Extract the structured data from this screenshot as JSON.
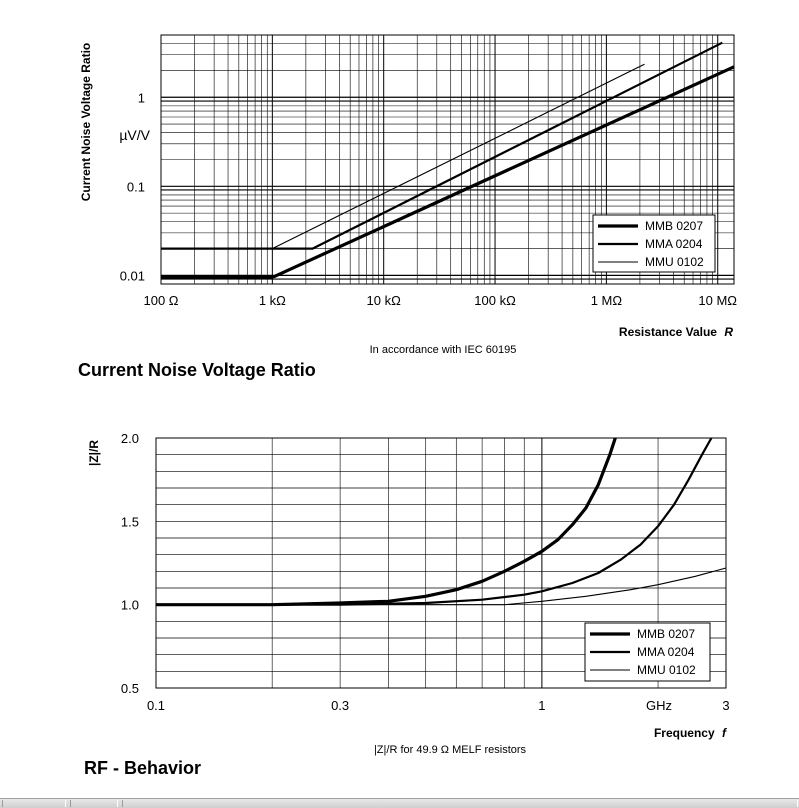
{
  "chart_data": [
    {
      "type": "line",
      "title": "Current Noise Voltage Ratio",
      "note": "In accordance with IEC 60195",
      "ylabel": "Current Noise Voltage Ratio",
      "yunit": "µV/V",
      "xlabel": "Resistance Value",
      "xlabel_var": "R",
      "x_scale": "log",
      "y_scale": "log",
      "xlim": [
        100,
        14000000
      ],
      "ylim": [
        0.008,
        5
      ],
      "x_ticks": [
        {
          "value": 100,
          "label": "100 Ω"
        },
        {
          "value": 1000,
          "label": "1 kΩ"
        },
        {
          "value": 10000,
          "label": "10 kΩ"
        },
        {
          "value": 100000,
          "label": "100 kΩ"
        },
        {
          "value": 1000000,
          "label": "1 MΩ"
        },
        {
          "value": 10000000,
          "label": "10 MΩ"
        }
      ],
      "y_ticks": [
        {
          "value": 0.01,
          "label": "0.01"
        },
        {
          "value": 0.1,
          "label": "0.1"
        },
        {
          "value": 1,
          "label": "1"
        }
      ],
      "grid": true,
      "legend_position": "bottom-right",
      "series": [
        {
          "name": "MMB 0207",
          "width": 3.2,
          "points": [
            [
              100,
              0.0095
            ],
            [
              1000,
              0.0095
            ],
            [
              14000000,
              2.2
            ]
          ]
        },
        {
          "name": "MMA 0204",
          "width": 2.2,
          "points": [
            [
              100,
              0.02
            ],
            [
              2300,
              0.02
            ],
            [
              11000000,
              4.1
            ]
          ]
        },
        {
          "name": "MMU 0102",
          "width": 1.1,
          "points": [
            [
              1000,
              0.02
            ],
            [
              2200000,
              2.35
            ]
          ]
        }
      ]
    },
    {
      "type": "line",
      "title": "RF - Behavior",
      "note": "|Z|/R for 49.9 Ω MELF resistors",
      "ylabel": "|Z|/R",
      "xlabel": "Frequency",
      "xlabel_var": "f",
      "x_scale": "log",
      "xlim": [
        0.1,
        3
      ],
      "ylim": [
        0.5,
        2.0
      ],
      "x_ticks": [
        {
          "value": 0.1,
          "label": "0.1"
        },
        {
          "value": 0.3,
          "label": "0.3"
        },
        {
          "value": 1,
          "label": "1"
        },
        {
          "value": 3,
          "label": "3"
        }
      ],
      "x_unit_label": "GHz",
      "y_ticks": [
        {
          "value": 0.5,
          "label": "0.5"
        },
        {
          "value": 1.0,
          "label": "1.0"
        },
        {
          "value": 1.5,
          "label": "1.5"
        },
        {
          "value": 2.0,
          "label": "2.0"
        }
      ],
      "grid": true,
      "legend_position": "bottom-right",
      "series": [
        {
          "name": "MMB 0207",
          "width": 3.2,
          "points": [
            [
              0.1,
              1.0
            ],
            [
              0.2,
              1.0
            ],
            [
              0.3,
              1.01
            ],
            [
              0.4,
              1.02
            ],
            [
              0.5,
              1.05
            ],
            [
              0.6,
              1.09
            ],
            [
              0.7,
              1.14
            ],
            [
              0.8,
              1.2
            ],
            [
              0.9,
              1.26
            ],
            [
              1.0,
              1.32
            ],
            [
              1.1,
              1.39
            ],
            [
              1.2,
              1.48
            ],
            [
              1.3,
              1.58
            ],
            [
              1.4,
              1.72
            ],
            [
              1.5,
              1.9
            ],
            [
              1.55,
              2.0
            ]
          ]
        },
        {
          "name": "MMA 0204",
          "width": 2.2,
          "points": [
            [
              0.1,
              1.0
            ],
            [
              0.3,
              1.0
            ],
            [
              0.5,
              1.01
            ],
            [
              0.7,
              1.03
            ],
            [
              0.9,
              1.06
            ],
            [
              1.0,
              1.08
            ],
            [
              1.2,
              1.13
            ],
            [
              1.4,
              1.19
            ],
            [
              1.6,
              1.27
            ],
            [
              1.8,
              1.36
            ],
            [
              2.0,
              1.47
            ],
            [
              2.2,
              1.6
            ],
            [
              2.4,
              1.75
            ],
            [
              2.6,
              1.9
            ],
            [
              2.75,
              2.0
            ]
          ]
        },
        {
          "name": "MMU 0102",
          "width": 1.1,
          "points": [
            [
              0.1,
              1.0
            ],
            [
              0.5,
              1.0
            ],
            [
              0.8,
              1.0
            ],
            [
              1.0,
              1.02
            ],
            [
              1.3,
              1.05
            ],
            [
              1.7,
              1.09
            ],
            [
              2.0,
              1.12
            ],
            [
              2.5,
              1.17
            ],
            [
              3.0,
              1.22
            ]
          ]
        }
      ]
    }
  ]
}
